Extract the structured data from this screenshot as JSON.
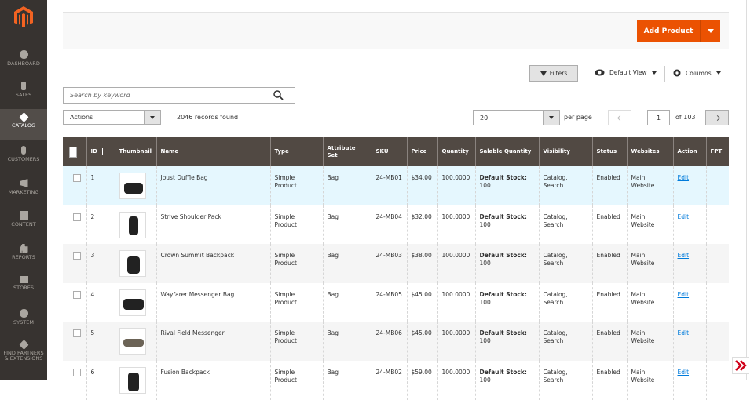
{
  "sidebar": {
    "items": [
      "DASHBOARD",
      "SALES",
      "CATALOG",
      "CUSTOMERS",
      "MARKETING",
      "CONTENT",
      "REPORTS",
      "STORES",
      "SYSTEM",
      "FIND PARTNERS & EXTENSIONS"
    ]
  },
  "header": {
    "add_product": "Add Product"
  },
  "toolbar": {
    "filters": "Filters",
    "view": "Default View",
    "columns": "Columns"
  },
  "search": {
    "placeholder": "Search by keyword"
  },
  "grid": {
    "actions": "Actions",
    "records": "2046 records found",
    "per_page_value": "20",
    "per_page_label": "per page",
    "page": "1",
    "pages": "of 103"
  },
  "table": {
    "columns": [
      "ID",
      "Thumbnail",
      "Name",
      "Type",
      "Attribute Set",
      "SKU",
      "Price",
      "Quantity",
      "Salable Quantity",
      "Visibility",
      "Status",
      "Websites",
      "Action",
      "FPT"
    ],
    "rows": [
      {
        "id": "1",
        "name": "Joust Duffle Bag",
        "type": "Simple Product",
        "attribute_set": "Bag",
        "sku": "24-MB01",
        "price": "$34.00",
        "quantity": "100.0000",
        "salable_label": "Default Stock:",
        "salable_qty": "100",
        "visibility": "Catalog, Search",
        "status": "Enabled",
        "websites": "Main Website",
        "action": "Edit"
      },
      {
        "id": "2",
        "name": "Strive Shoulder Pack",
        "type": "Simple Product",
        "attribute_set": "Bag",
        "sku": "24-MB04",
        "price": "$32.00",
        "quantity": "100.0000",
        "salable_label": "Default Stock:",
        "salable_qty": "100",
        "visibility": "Catalog, Search",
        "status": "Enabled",
        "websites": "Main Website",
        "action": "Edit"
      },
      {
        "id": "3",
        "name": "Crown Summit Backpack",
        "type": "Simple Product",
        "attribute_set": "Bag",
        "sku": "24-MB03",
        "price": "$38.00",
        "quantity": "100.0000",
        "salable_label": "Default Stock:",
        "salable_qty": "100",
        "visibility": "Catalog, Search",
        "status": "Enabled",
        "websites": "Main Website",
        "action": "Edit"
      },
      {
        "id": "4",
        "name": "Wayfarer Messenger Bag",
        "type": "Simple Product",
        "attribute_set": "Bag",
        "sku": "24-MB05",
        "price": "$45.00",
        "quantity": "100.0000",
        "salable_label": "Default Stock:",
        "salable_qty": "100",
        "visibility": "Catalog, Search",
        "status": "Enabled",
        "websites": "Main Website",
        "action": "Edit"
      },
      {
        "id": "5",
        "name": "Rival Field Messenger",
        "type": "Simple Product",
        "attribute_set": "Bag",
        "sku": "24-MB06",
        "price": "$45.00",
        "quantity": "100.0000",
        "salable_label": "Default Stock:",
        "salable_qty": "100",
        "visibility": "Catalog, Search",
        "status": "Enabled",
        "websites": "Main Website",
        "action": "Edit"
      },
      {
        "id": "6",
        "name": "Fusion Backpack",
        "type": "Simple Product",
        "attribute_set": "Bag",
        "sku": "24-MB02",
        "price": "$59.00",
        "quantity": "100.0000",
        "salable_label": "Default Stock:",
        "salable_qty": "100",
        "visibility": "Catalog, Search",
        "status": "Enabled",
        "websites": "Main Website",
        "action": "Edit"
      }
    ]
  }
}
